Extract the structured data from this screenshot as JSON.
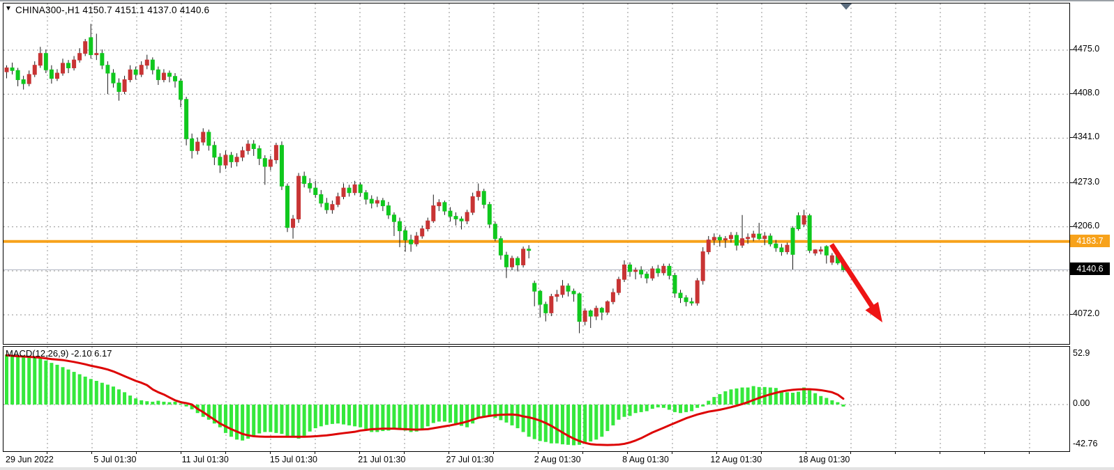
{
  "window": {
    "dropdown_icon": "black-down-triangle",
    "title": "CHINA300-,H1  4150.7 4151.1 4137.0 4140.6"
  },
  "colors": {
    "bull_candle": "#c83434",
    "bear_candle": "#10c81e",
    "wick": "#1a1a1a",
    "macd_hist": "#35e83c",
    "macd_signal": "#dd0404",
    "orange_line": "#f7a21b",
    "orange_label_bg": "#f7a21b",
    "bid_line": "#b9bdc9",
    "bid_label_bg": "#000000",
    "grid": "#909090",
    "arrow": "#ee1414",
    "scroll_marker": "#5b6c7e"
  },
  "price_axis": {
    "labels": [
      {
        "text": "4475.0",
        "price": 4475.0
      },
      {
        "text": "4408.0",
        "price": 4408.0
      },
      {
        "text": "4341.0",
        "price": 4341.0
      },
      {
        "text": "4273.0",
        "price": 4273.0
      },
      {
        "text": "4206.0",
        "price": 4206.0
      },
      {
        "text": "4072.0",
        "price": 4072.0
      }
    ],
    "orange_level": {
      "text": "4183.7",
      "price": 4183.7
    },
    "bid_level": {
      "text": "4140.6",
      "price": 4140.6
    }
  },
  "time_axis": {
    "labels": [
      "29 Jun 2022",
      "5 Jul 01:30",
      "11 Jul 01:30",
      "15 Jul 01:30",
      "21 Jul 01:30",
      "27 Jul 01:30",
      "2 Aug 01:30",
      "8 Aug 01:30",
      "12 Aug 01:30",
      "18 Aug 01:30"
    ]
  },
  "macd_panel": {
    "label": "MACD(12,26,9) -2.10 6.17",
    "axis_labels": [
      {
        "text": "52.9",
        "value": 52.9
      },
      {
        "text": "0.00",
        "value": 0
      },
      {
        "text": "-42.76",
        "value": -42.76
      }
    ]
  },
  "chart_data": [
    {
      "type": "candlestick",
      "symbol": "CHINA300-",
      "timeframe": "H1",
      "title": "CHINA300-,H1  4150.7 4151.1 4137.0 4140.6",
      "current_bar": {
        "open": 4150.7,
        "high": 4151.1,
        "low": 4137.0,
        "close": 4140.6
      },
      "ylim": [
        4040,
        4520
      ],
      "price_gridlines": [
        4475,
        4408,
        4341,
        4273,
        4206,
        4139,
        4072
      ],
      "hline_price": 4183.7,
      "bid_price": 4140.6,
      "x_labels": [
        "29 Jun 2022",
        "5 Jul 01:30",
        "11 Jul 01:30",
        "15 Jul 01:30",
        "21 Jul 01:30",
        "27 Jul 01:30",
        "2 Aug 01:30",
        "8 Aug 01:30",
        "12 Aug 01:30",
        "18 Aug 01:30"
      ],
      "color_convention": "red=up, green=down",
      "ohlc": [
        [
          4442,
          4452,
          4432,
          4448
        ],
        [
          4448,
          4456,
          4438,
          4444
        ],
        [
          4444,
          4448,
          4420,
          4430
        ],
        [
          4430,
          4436,
          4415,
          4424
        ],
        [
          4424,
          4444,
          4420,
          4438
        ],
        [
          4438,
          4458,
          4434,
          4452
        ],
        [
          4452,
          4480,
          4448,
          4470
        ],
        [
          4470,
          4476,
          4440,
          4445
        ],
        [
          4445,
          4452,
          4424,
          4432
        ],
        [
          4432,
          4446,
          4428,
          4440
        ],
        [
          4440,
          4462,
          4436,
          4455
        ],
        [
          4455,
          4460,
          4440,
          4448
        ],
        [
          4448,
          4466,
          4444,
          4460
        ],
        [
          4460,
          4478,
          4456,
          4470
        ],
        [
          4470,
          4492,
          4466,
          4488
        ],
        [
          4494,
          4515,
          4462,
          4468
        ],
        [
          4468,
          4500,
          4460,
          4470
        ],
        [
          4470,
          4476,
          4446,
          4452
        ],
        [
          4452,
          4458,
          4408,
          4440
        ],
        [
          4440,
          4446,
          4418,
          4425
        ],
        [
          4425,
          4432,
          4398,
          4412
        ],
        [
          4412,
          4436,
          4408,
          4430
        ],
        [
          4430,
          4452,
          4426,
          4445
        ],
        [
          4445,
          4450,
          4430,
          4438
        ],
        [
          4438,
          4458,
          4434,
          4452
        ],
        [
          4452,
          4468,
          4446,
          4460
        ],
        [
          4460,
          4464,
          4438,
          4445
        ],
        [
          4445,
          4450,
          4422,
          4430
        ],
        [
          4430,
          4446,
          4426,
          4440
        ],
        [
          4440,
          4444,
          4426,
          4435
        ],
        [
          4435,
          4440,
          4418,
          4428
        ],
        [
          4428,
          4432,
          4388,
          4400
        ],
        [
          4400,
          4404,
          4330,
          4340
        ],
        [
          4340,
          4348,
          4310,
          4322
        ],
        [
          4322,
          4342,
          4316,
          4335
        ],
        [
          4335,
          4356,
          4330,
          4350
        ],
        [
          4350,
          4354,
          4322,
          4330
        ],
        [
          4330,
          4336,
          4300,
          4312
        ],
        [
          4312,
          4318,
          4288,
          4300
        ],
        [
          4300,
          4322,
          4294,
          4315
        ],
        [
          4315,
          4320,
          4296,
          4305
        ],
        [
          4305,
          4318,
          4298,
          4312
        ],
        [
          4312,
          4328,
          4306,
          4322
        ],
        [
          4322,
          4338,
          4316,
          4332
        ],
        [
          4332,
          4338,
          4314,
          4325
        ],
        [
          4325,
          4330,
          4300,
          4310
        ],
        [
          4310,
          4315,
          4270,
          4298
        ],
        [
          4298,
          4314,
          4292,
          4308
        ],
        [
          4308,
          4334,
          4302,
          4330
        ],
        [
          4330,
          4336,
          4262,
          4268
        ],
        [
          4268,
          4272,
          4198,
          4205
        ],
        [
          4205,
          4224,
          4188,
          4218
        ],
        [
          4218,
          4288,
          4212,
          4283
        ],
        [
          4283,
          4290,
          4266,
          4272
        ],
        [
          4272,
          4280,
          4258,
          4265
        ],
        [
          4265,
          4276,
          4250,
          4255
        ],
        [
          4255,
          4262,
          4236,
          4242
        ],
        [
          4242,
          4250,
          4226,
          4232
        ],
        [
          4232,
          4246,
          4226,
          4240
        ],
        [
          4240,
          4258,
          4236,
          4252
        ],
        [
          4252,
          4272,
          4248,
          4265
        ],
        [
          4265,
          4270,
          4252,
          4258
        ],
        [
          4258,
          4276,
          4254,
          4270
        ],
        [
          4270,
          4274,
          4252,
          4258
        ],
        [
          4258,
          4262,
          4240,
          4248
        ],
        [
          4248,
          4254,
          4234,
          4242
        ],
        [
          4242,
          4252,
          4236,
          4246
        ],
        [
          4246,
          4250,
          4230,
          4238
        ],
        [
          4238,
          4244,
          4218,
          4224
        ],
        [
          4224,
          4228,
          4192,
          4214
        ],
        [
          4214,
          4220,
          4175,
          4200
        ],
        [
          4200,
          4206,
          4168,
          4186
        ],
        [
          4186,
          4194,
          4168,
          4180
        ],
        [
          4180,
          4198,
          4176,
          4192
        ],
        [
          4192,
          4208,
          4188,
          4203
        ],
        [
          4203,
          4220,
          4199,
          4215
        ],
        [
          4215,
          4255,
          4212,
          4238
        ],
        [
          4238,
          4248,
          4230,
          4243
        ],
        [
          4243,
          4246,
          4224,
          4230
        ],
        [
          4230,
          4236,
          4214,
          4222
        ],
        [
          4222,
          4228,
          4208,
          4218
        ],
        [
          4218,
          4222,
          4202,
          4215
        ],
        [
          4215,
          4232,
          4210,
          4228
        ],
        [
          4228,
          4258,
          4224,
          4252
        ],
        [
          4252,
          4272,
          4246,
          4260
        ],
        [
          4260,
          4264,
          4234,
          4240
        ],
        [
          4240,
          4244,
          4204,
          4210
        ],
        [
          4210,
          4214,
          4184,
          4188
        ],
        [
          4188,
          4192,
          4156,
          4163
        ],
        [
          4163,
          4168,
          4128,
          4145
        ],
        [
          4145,
          4162,
          4140,
          4158
        ],
        [
          4158,
          4161,
          4138,
          4148
        ],
        [
          4148,
          4176,
          4144,
          4172
        ],
        [
          4172,
          4178,
          4158,
          4170
        ],
        [
          4120,
          4124,
          4085,
          4108
        ],
        [
          4108,
          4110,
          4068,
          4088
        ],
        [
          4088,
          4092,
          4062,
          4075
        ],
        [
          4075,
          4104,
          4070,
          4100
        ],
        [
          4100,
          4110,
          4092,
          4103
        ],
        [
          4103,
          4125,
          4098,
          4116
        ],
        [
          4116,
          4120,
          4100,
          4108
        ],
        [
          4108,
          4112,
          4092,
          4104
        ],
        [
          4104,
          4106,
          4044,
          4062
        ],
        [
          4062,
          4082,
          4056,
          4078
        ],
        [
          4078,
          4080,
          4052,
          4070
        ],
        [
          4070,
          4086,
          4064,
          4082
        ],
        [
          4082,
          4084,
          4064,
          4076
        ],
        [
          4076,
          4094,
          4072,
          4092
        ],
        [
          4092,
          4112,
          4088,
          4106
        ],
        [
          4106,
          4130,
          4102,
          4126
        ],
        [
          4126,
          4155,
          4122,
          4148
        ],
        [
          4148,
          4152,
          4130,
          4138
        ],
        [
          4138,
          4144,
          4126,
          4140
        ],
        [
          4140,
          4146,
          4128,
          4134
        ],
        [
          4134,
          4138,
          4120,
          4128
        ],
        [
          4128,
          4146,
          4124,
          4142
        ],
        [
          4142,
          4148,
          4130,
          4136
        ],
        [
          4136,
          4150,
          4132,
          4146
        ],
        [
          4146,
          4150,
          4126,
          4132
        ],
        [
          4132,
          4136,
          4098,
          4105
        ],
        [
          4105,
          4110,
          4090,
          4098
        ],
        [
          4098,
          4102,
          4085,
          4092
        ],
        [
          4092,
          4098,
          4086,
          4090
        ],
        [
          4090,
          4128,
          4086,
          4124
        ],
        [
          4124,
          4175,
          4118,
          4168
        ],
        [
          4168,
          4192,
          4164,
          4186
        ],
        [
          4186,
          4196,
          4178,
          4190
        ],
        [
          4190,
          4194,
          4176,
          4186
        ],
        [
          4186,
          4192,
          4174,
          4188
        ],
        [
          4188,
          4198,
          4182,
          4193
        ],
        [
          4193,
          4198,
          4170,
          4178
        ],
        [
          4178,
          4224,
          4174,
          4188
        ],
        [
          4188,
          4196,
          4180,
          4190
        ],
        [
          4190,
          4200,
          4184,
          4195
        ],
        [
          4195,
          4212,
          4186,
          4188
        ],
        [
          4188,
          4198,
          4178,
          4192
        ],
        [
          4192,
          4196,
          4176,
          4180
        ],
        [
          4180,
          4186,
          4168,
          4174
        ],
        [
          4174,
          4180,
          4162,
          4168
        ],
        [
          4168,
          4182,
          4164,
          4178
        ],
        [
          4204,
          4207,
          4141,
          4164
        ],
        [
          4223,
          4228,
          4200,
          4203
        ],
        [
          4210,
          4232,
          4206,
          4223
        ],
        [
          4223,
          4226,
          4166,
          4170
        ],
        [
          4166,
          4172,
          4162,
          4171
        ],
        [
          4169,
          4176,
          4164,
          4171
        ],
        [
          4176,
          4178,
          4150,
          4163
        ],
        [
          4152,
          4166,
          4148,
          4162
        ],
        [
          4162,
          4170,
          4148,
          4151
        ],
        [
          4150.7,
          4151.1,
          4137.0,
          4140.6
        ]
      ],
      "annotation": {
        "type": "arrow-down-right",
        "color": "#ee1414",
        "from": {
          "x": 1191,
          "y": 350
        },
        "to": {
          "x": 1264,
          "y": 462
        }
      }
    },
    {
      "type": "bar",
      "name": "MACD(12,26,9)",
      "current_values": {
        "macd": -2.1,
        "signal": 6.17
      },
      "ylim": [
        -42.76,
        52.9
      ],
      "gridlines": [
        0
      ],
      "histogram": [
        52.9,
        52.5,
        52,
        51.5,
        51,
        50,
        48.5,
        46.5,
        44,
        42,
        39.5,
        37,
        34.5,
        32,
        29.5,
        27,
        25,
        23,
        21,
        19,
        16,
        13,
        9.5,
        6.5,
        4.5,
        3.5,
        3,
        4,
        3,
        2.5,
        3,
        1,
        -2,
        -5,
        -9,
        -13,
        -16,
        -20,
        -24,
        -30,
        -34,
        -37,
        -38,
        -36,
        -33.5,
        -30.5,
        -29,
        -29,
        -30,
        -31,
        -33,
        -35,
        -36,
        -33,
        -28.5,
        -25,
        -23,
        -21.5,
        -20.5,
        -20,
        -21,
        -22,
        -23,
        -24,
        -26,
        -29,
        -29,
        -28,
        -27.5,
        -26.5,
        -26,
        -27.5,
        -29,
        -28.5,
        -27,
        -23,
        -19.5,
        -18,
        -18,
        -19,
        -21,
        -22.5,
        -24,
        -20,
        -13.5,
        -12.5,
        -13,
        -14,
        -16.5,
        -19,
        -22,
        -25,
        -29,
        -34,
        -36.5,
        -38.5,
        -39.5,
        -41,
        -41,
        -42,
        -42.5,
        -43,
        -42.5,
        -41,
        -39,
        -37,
        -34,
        -28,
        -22,
        -16,
        -13,
        -12,
        -9,
        -8,
        -7,
        -4.5,
        -3,
        -3.5,
        -5.5,
        -8,
        -9,
        -8,
        -7,
        -3.5,
        -2,
        4,
        8,
        11,
        14,
        16,
        17,
        18,
        18,
        19.5,
        18.5,
        18.5,
        18,
        17.5,
        14.5,
        13,
        12.5,
        13.5,
        18,
        15,
        12,
        9,
        7,
        4.5,
        2.5,
        -2.1
      ],
      "signal": [
        52,
        51.5,
        51,
        50.7,
        50.4,
        50,
        49.5,
        48.8,
        48,
        47.5,
        47,
        46,
        45,
        43.8,
        42.5,
        41,
        39.8,
        38.5,
        37,
        35,
        32.5,
        30,
        27.5,
        25,
        23,
        20.5,
        16,
        13,
        10.6,
        7.5,
        4.5,
        2.5,
        1.5,
        0,
        -4.5,
        -8,
        -12,
        -16,
        -20,
        -23,
        -26,
        -28.5,
        -31,
        -32.5,
        -33.5,
        -33.8,
        -34,
        -34,
        -34,
        -34,
        -34,
        -34,
        -34,
        -34,
        -33.8,
        -33.5,
        -33,
        -32.5,
        -31.8,
        -31,
        -30.2,
        -29.5,
        -28.8,
        -27.5,
        -26.8,
        -26,
        -25.8,
        -25.5,
        -25.5,
        -25.5,
        -25.8,
        -26,
        -26.3,
        -26.5,
        -26.3,
        -26,
        -25,
        -24,
        -23,
        -22,
        -20.8,
        -19.5,
        -18,
        -16,
        -14,
        -13,
        -12,
        -11.2,
        -10.8,
        -10.6,
        -10.5,
        -11,
        -12.5,
        -13.5,
        -15,
        -17,
        -19.5,
        -22.5,
        -26,
        -29.5,
        -33,
        -36,
        -38.5,
        -40.5,
        -41.8,
        -42.4,
        -42.6,
        -42.76,
        -42.6,
        -42.3,
        -41.5,
        -40,
        -38,
        -35.5,
        -32.5,
        -29.5,
        -27,
        -24.5,
        -22,
        -19.5,
        -17,
        -14.5,
        -12.5,
        -10.5,
        -9,
        -7.5,
        -6.5,
        -5.5,
        -4.2,
        -2.8,
        -1.2,
        0.5,
        2.5,
        4.8,
        7,
        9,
        10.8,
        12.4,
        13.8,
        14.8,
        15.5,
        16,
        16.2,
        16.2,
        15.8,
        15.2,
        14.2,
        13,
        10.5,
        6.17
      ]
    }
  ]
}
